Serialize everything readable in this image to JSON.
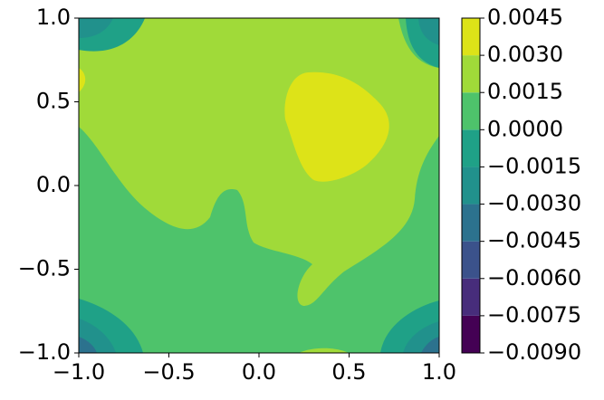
{
  "chart_data": {
    "type": "contour",
    "xlim": [
      -1,
      1
    ],
    "xticks": [
      {
        "value": -1,
        "label": "−1.0"
      },
      {
        "value": -0.5,
        "label": "−0.5"
      },
      {
        "value": 0,
        "label": "0.0"
      },
      {
        "value": 0.5,
        "label": "0.5"
      },
      {
        "value": 1,
        "label": "1.0"
      }
    ],
    "ylim": [
      -1,
      1
    ],
    "yticks": [
      {
        "value": -1,
        "label": "−1.0"
      },
      {
        "value": -0.5,
        "label": "−0.5"
      },
      {
        "value": 0,
        "label": "0.0"
      },
      {
        "value": 0.5,
        "label": "0.5"
      },
      {
        "value": 1,
        "label": "1.0"
      }
    ],
    "colorbar": {
      "ticks": [
        {
          "value": -0.009,
          "label": "−0.0090"
        },
        {
          "value": -0.0075,
          "label": "−0.0075"
        },
        {
          "value": -0.006,
          "label": "−0.0060"
        },
        {
          "value": -0.0045,
          "label": "−0.0045"
        },
        {
          "value": -0.003,
          "label": "−0.0030"
        },
        {
          "value": -0.0015,
          "label": "−0.0015"
        },
        {
          "value": 0,
          "label": "0.0000"
        },
        {
          "value": 0.0015,
          "label": "0.0015"
        },
        {
          "value": 0.003,
          "label": "0.0030"
        },
        {
          "value": 0.0045,
          "label": "0.0045"
        }
      ],
      "colors": [
        "#440154",
        "#472d7b",
        "#3b528b",
        "#2c728e",
        "#21918c",
        "#1fa187",
        "#4ec36b",
        "#a0da39",
        "#dde318"
      ]
    }
  }
}
